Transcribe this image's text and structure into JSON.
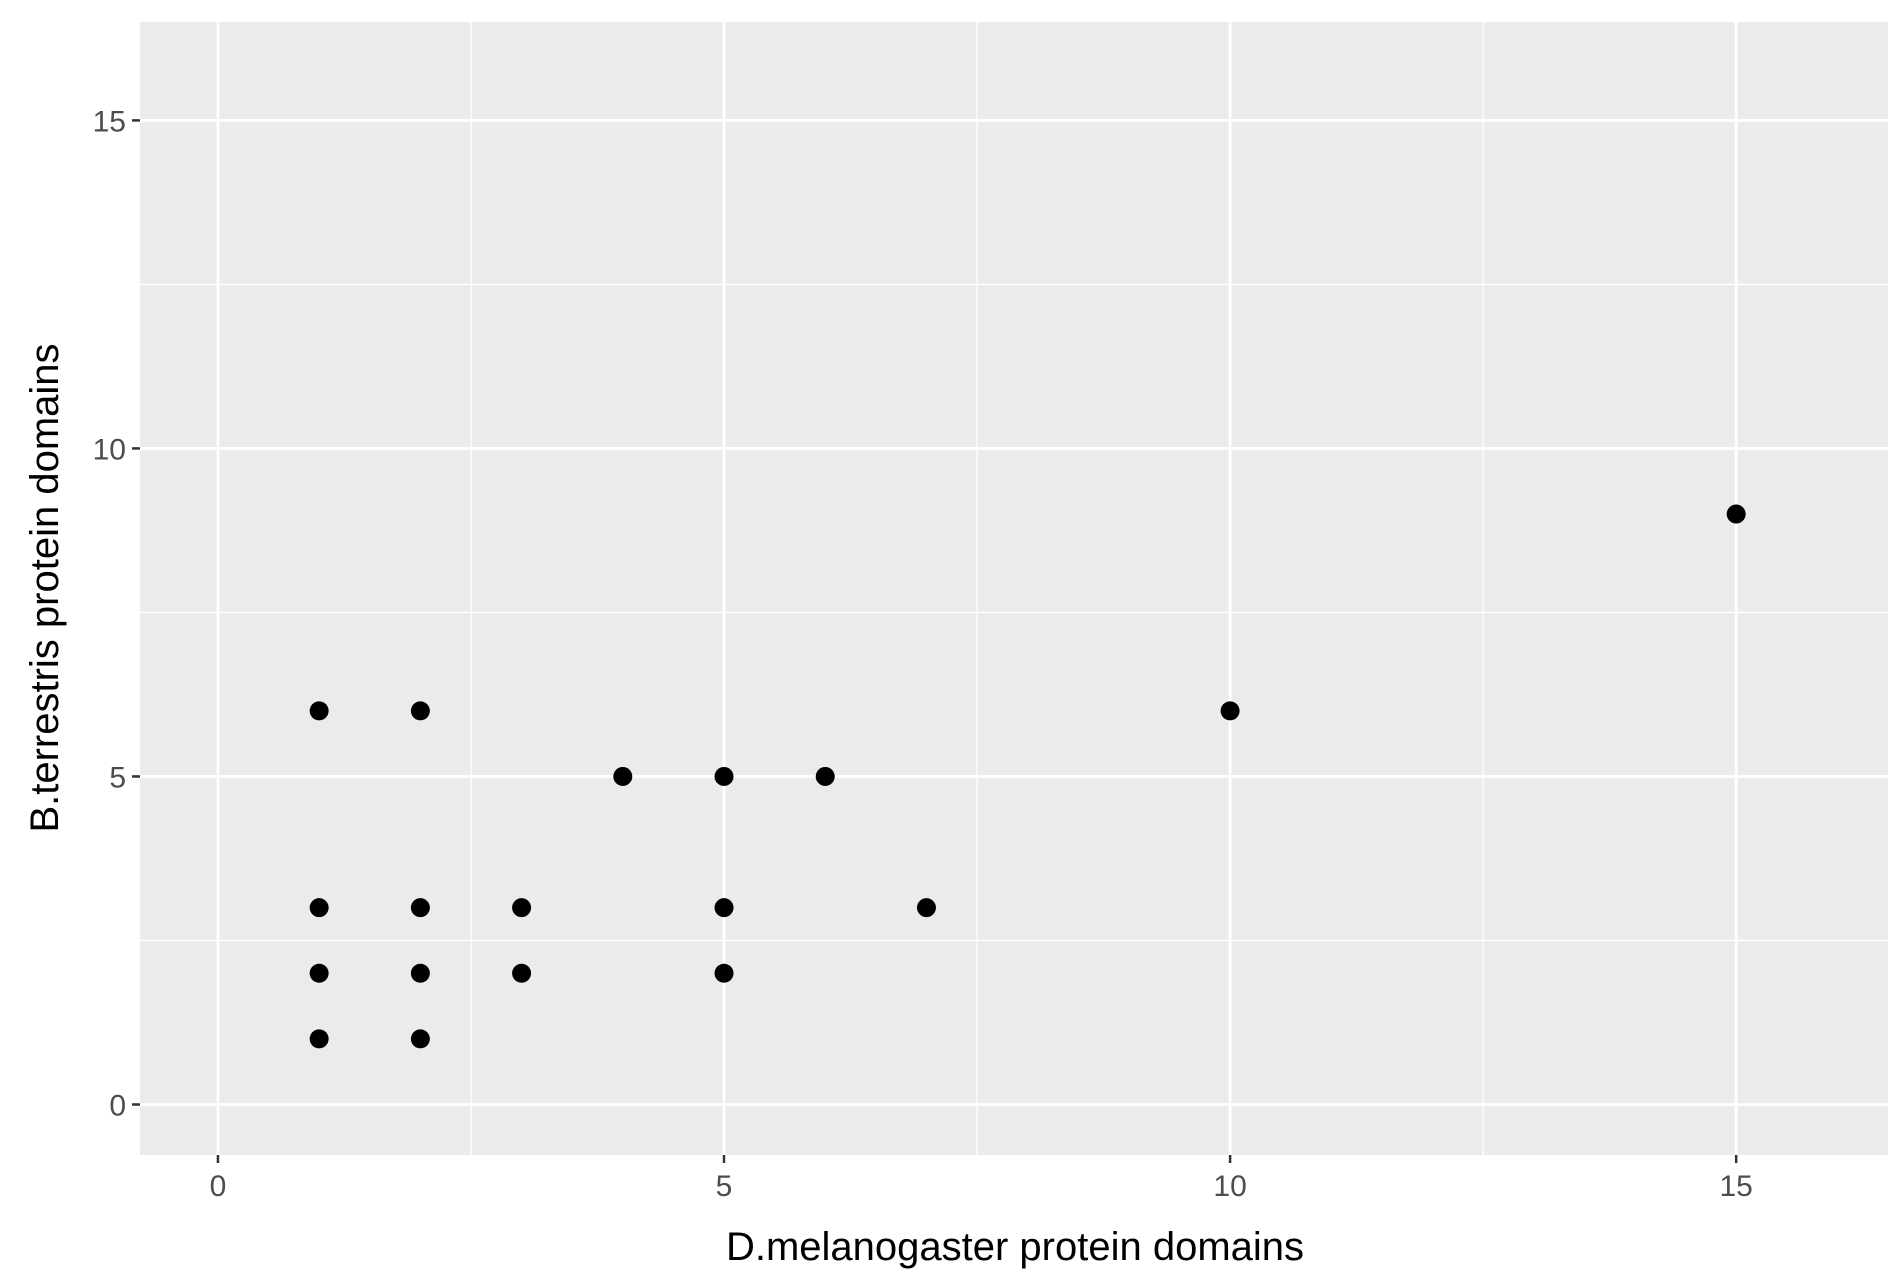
{
  "chart_data": {
    "type": "scatter",
    "title": "",
    "xlabel": "D.melanogaster protein domains",
    "ylabel": "B.terrestris protein domains",
    "xlim": [
      -0.77,
      16.5
    ],
    "ylim": [
      -0.77,
      16.5
    ],
    "x_ticks": [
      0,
      5,
      10,
      15
    ],
    "y_ticks": [
      0,
      5,
      10,
      15
    ],
    "x_tick_labels": [
      "0",
      "5",
      "10",
      "15"
    ],
    "y_tick_labels": [
      "0",
      "5",
      "10",
      "15"
    ],
    "grid": true,
    "legend": "none",
    "colors": {
      "panel": "#ebebeb",
      "grid": "#ffffff",
      "point": "#000000",
      "tick_text": "#4d4d4d",
      "axis_title": "#000000"
    },
    "points": [
      {
        "x": 1,
        "y": 6
      },
      {
        "x": 2,
        "y": 6
      },
      {
        "x": 4,
        "y": 5
      },
      {
        "x": 5,
        "y": 5
      },
      {
        "x": 6,
        "y": 5
      },
      {
        "x": 1,
        "y": 3
      },
      {
        "x": 2,
        "y": 3
      },
      {
        "x": 3,
        "y": 3
      },
      {
        "x": 5,
        "y": 3
      },
      {
        "x": 7,
        "y": 3
      },
      {
        "x": 1,
        "y": 2
      },
      {
        "x": 2,
        "y": 2
      },
      {
        "x": 3,
        "y": 2
      },
      {
        "x": 5,
        "y": 2
      },
      {
        "x": 1,
        "y": 1
      },
      {
        "x": 2,
        "y": 1
      },
      {
        "x": 10,
        "y": 6
      },
      {
        "x": 15,
        "y": 9
      }
    ]
  }
}
